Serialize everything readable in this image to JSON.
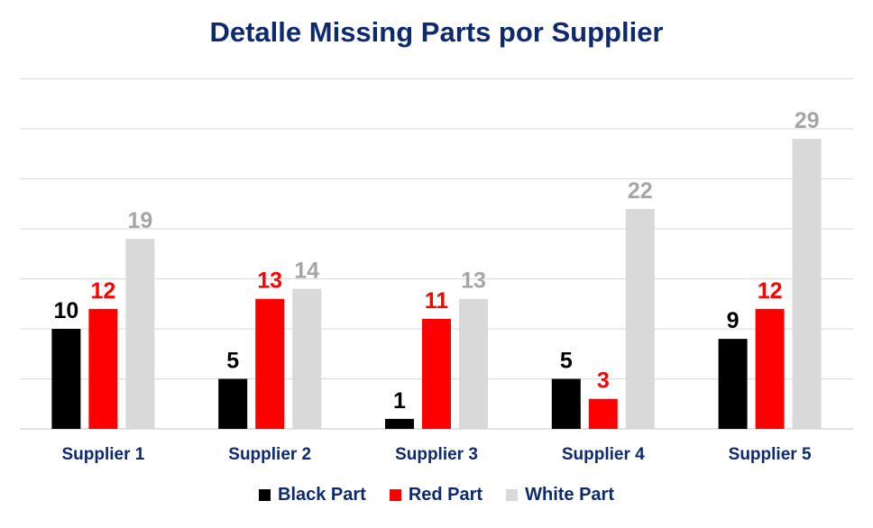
{
  "chart_data": {
    "type": "bar",
    "title": "Detalle Missing Parts por Supplier",
    "xlabel": "",
    "ylabel": "",
    "categories": [
      "Supplier 1",
      "Supplier 2",
      "Supplier 3",
      "Supplier 4",
      "Supplier 5"
    ],
    "series": [
      {
        "name": "Black Part",
        "values": [
          10,
          5,
          1,
          5,
          9
        ],
        "color": "#000000",
        "label_color": "#000000"
      },
      {
        "name": "Red Part",
        "values": [
          12,
          13,
          11,
          3,
          12
        ],
        "color": "#ff0000",
        "label_color": "#ff0000"
      },
      {
        "name": "White Part",
        "values": [
          19,
          14,
          13,
          22,
          29
        ],
        "color": "#d9d9d9",
        "label_color": "#a6a6a6"
      }
    ],
    "ylim": [
      0,
      35
    ],
    "grid": true,
    "y_axis_labels_shown": false,
    "legend_position": "bottom",
    "colors": {
      "title": "#0e2a6e",
      "category_label": "#0e2a6e",
      "gridline": "#d9d9d9"
    }
  }
}
